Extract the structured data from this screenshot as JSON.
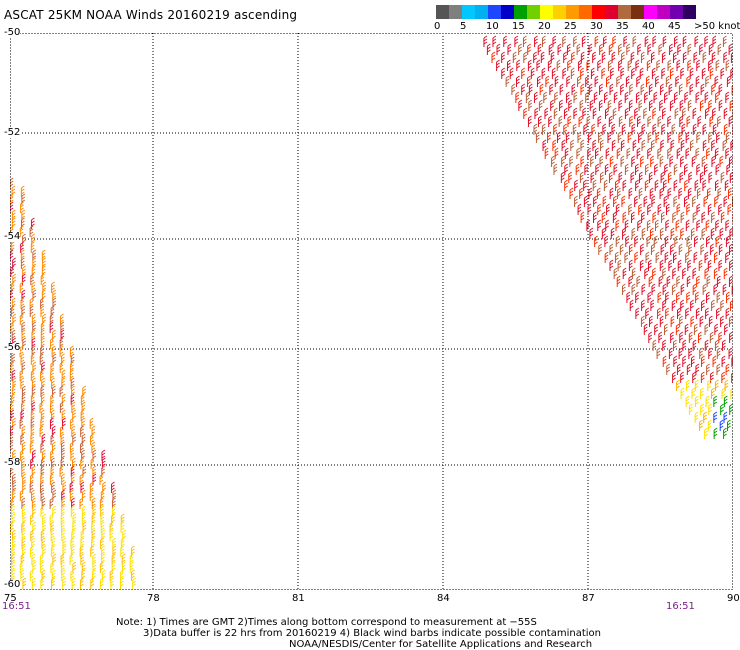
{
  "title": "ASCAT 25KM NOAA Winds 20160219 ascending",
  "colorbar": {
    "colors": [
      "#555555",
      "#7f7f7f",
      "#00c8ff",
      "#00b0f0",
      "#1e46ff",
      "#0000c8",
      "#00a000",
      "#70d000",
      "#ffff00",
      "#ffd000",
      "#ff9a00",
      "#ff6a00",
      "#ff0000",
      "#e00030",
      "#b06a40",
      "#7a3010",
      "#ff00ff",
      "#c000c0",
      "#7000b0",
      "#300060"
    ],
    "tick_labels": [
      "0",
      "5",
      "10",
      "15",
      "20",
      "25",
      "30",
      "35",
      "40",
      "45",
      ">50 knots"
    ]
  },
  "map": {
    "lat_labels": [
      "-50",
      "-52",
      "-54",
      "-56",
      "-58",
      "-60"
    ],
    "lon_labels": [
      "75",
      "78",
      "81",
      "84",
      "87",
      "90"
    ],
    "time_left": "16:51",
    "time_right": "16:51"
  },
  "notes": [
    "Note: 1) Times are GMT 2)Times along bottom correspond to measurement at −55S",
    "3)Data buffer is 22 hrs from 20160219 4) Black wind barbs indicate possible contamination",
    "NOAA/NESDIS/Center for Satellite Applications and Research"
  ]
}
